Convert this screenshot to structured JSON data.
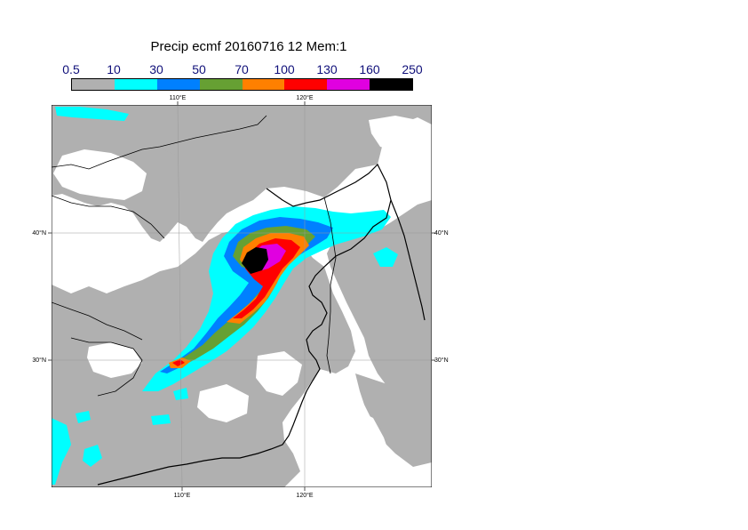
{
  "title": "Precip ecmf 20160716 12 Mem:1",
  "legend": {
    "levels": [
      "0.5",
      "10",
      "30",
      "50",
      "70",
      "100",
      "130",
      "160",
      "250"
    ],
    "colors": [
      "#b0b0b0",
      "#00ffff",
      "#0080ff",
      "#66a033",
      "#ff8000",
      "#ff0000",
      "#e000e0",
      "#000000"
    ]
  },
  "map": {
    "lon_labels": [
      "110°E",
      "120°E"
    ],
    "lat_labels": [
      "40°N",
      "30°N"
    ],
    "colors": {
      "ocean": "#ffffff",
      "gray": "#b0b0b0",
      "cyan": "#00ffff",
      "blue": "#0080ff",
      "green": "#66a033",
      "orange": "#ff8000",
      "red": "#ff0000",
      "magenta": "#e000e0",
      "black": "#000000"
    }
  }
}
